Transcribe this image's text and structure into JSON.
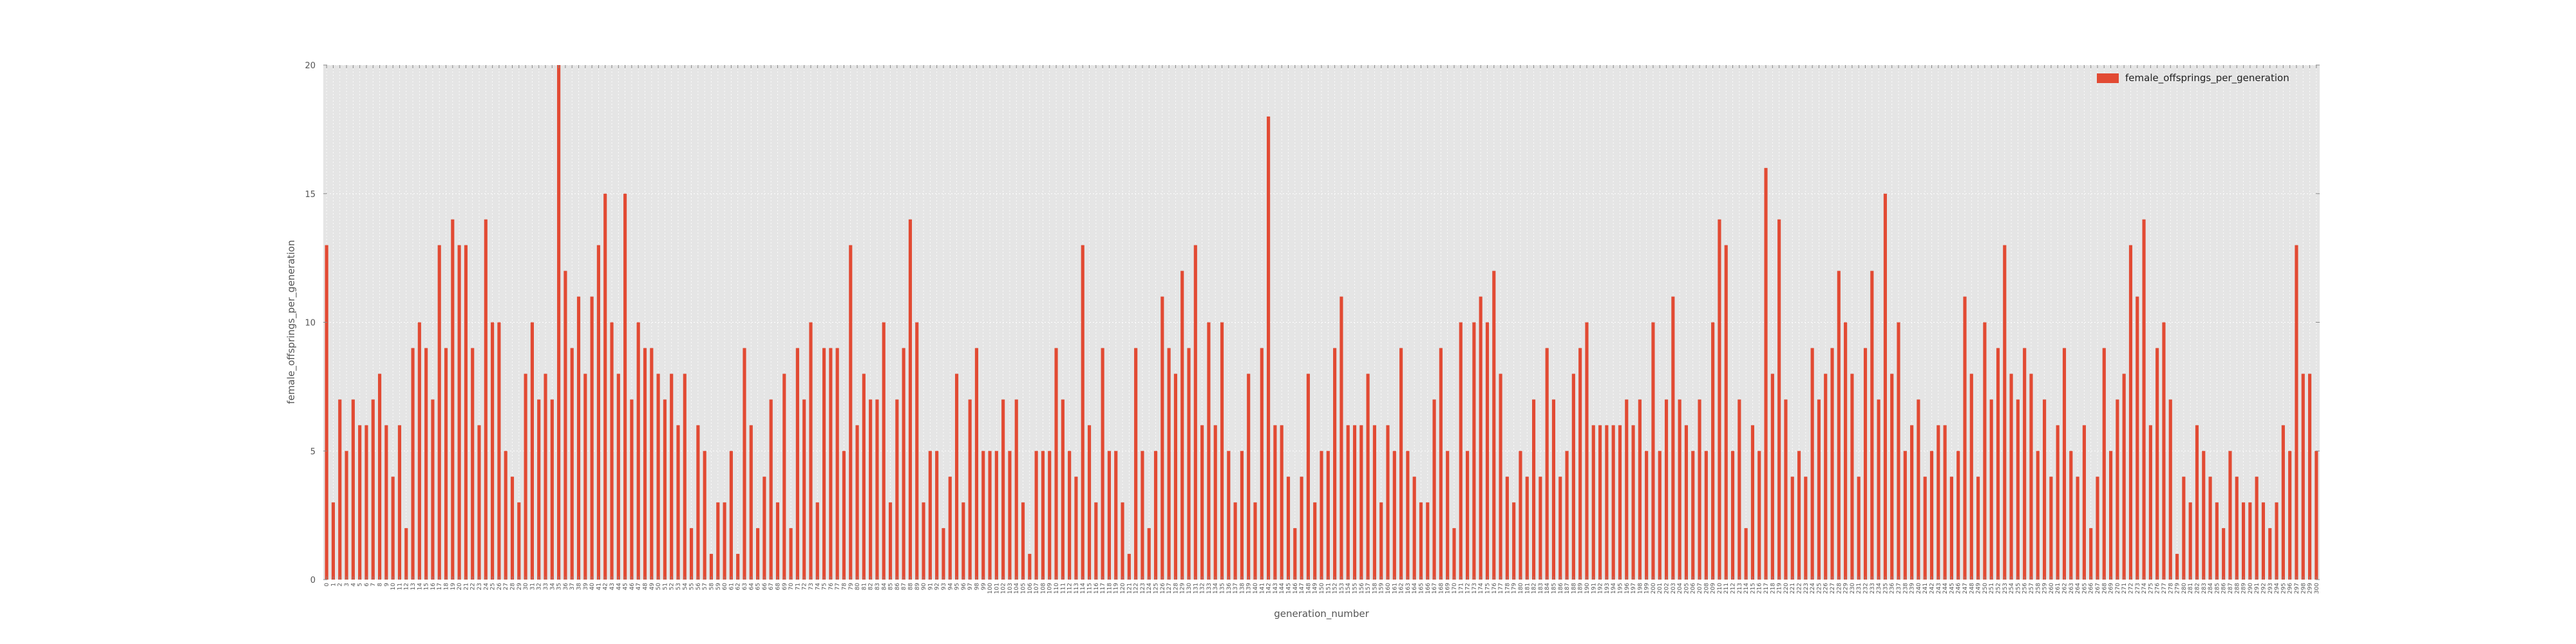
{
  "chart_data": {
    "type": "bar",
    "title": "",
    "xlabel": "generation_number",
    "ylabel": "female_offsprings_per_generation",
    "ylim": [
      0,
      20
    ],
    "yticks": [
      0,
      5,
      10,
      15,
      20
    ],
    "grid": true,
    "legend_position": "top-right",
    "series": [
      {
        "name": "female_offsprings_per_generation",
        "color": "#e24a33",
        "values": [
          13,
          3,
          7,
          5,
          7,
          6,
          6,
          7,
          8,
          6,
          4,
          6,
          2,
          9,
          10,
          9,
          7,
          13,
          9,
          14,
          13,
          13,
          9,
          6,
          14,
          10,
          10,
          5,
          4,
          3,
          8,
          10,
          7,
          8,
          7,
          20,
          12,
          9,
          11,
          8,
          11,
          13,
          15,
          10,
          8,
          15,
          7,
          10,
          9,
          9,
          8,
          7,
          8,
          6,
          8,
          2,
          6,
          5,
          1,
          3,
          3,
          5,
          1,
          9,
          6,
          2,
          4,
          7,
          3,
          8,
          2,
          9,
          7,
          10,
          3,
          9,
          9,
          9,
          5,
          13,
          6,
          8,
          7,
          7,
          10,
          3,
          7,
          9,
          14,
          10,
          3,
          5,
          5,
          2,
          4,
          8,
          3,
          7,
          9,
          5,
          5,
          5,
          7,
          5,
          7,
          3,
          1,
          5,
          5,
          5,
          9,
          7,
          5,
          4,
          13,
          6,
          3,
          9,
          5,
          5,
          3,
          1,
          9,
          5,
          2,
          5,
          11,
          9,
          8,
          12,
          9,
          13,
          6,
          10,
          6,
          10,
          5,
          3,
          5,
          8,
          3,
          9,
          18,
          6,
          6,
          4,
          2,
          4,
          8,
          3,
          5,
          5,
          9,
          11,
          6,
          6,
          6,
          8,
          6,
          3,
          6,
          5,
          9,
          5,
          4,
          3,
          3,
          7,
          9,
          5,
          2,
          10,
          5,
          10,
          11,
          10,
          12,
          8,
          4,
          3,
          5,
          4,
          7,
          4,
          9,
          7,
          4,
          5,
          8,
          9,
          10,
          6,
          6,
          6,
          6,
          6,
          7,
          6,
          7,
          5,
          10,
          5,
          7,
          11,
          7,
          6,
          5,
          7,
          5,
          10,
          14,
          13,
          5,
          7,
          2,
          6,
          5,
          16,
          8,
          14,
          7,
          4,
          5,
          4,
          9,
          7,
          8,
          9,
          12,
          10,
          8,
          4,
          9,
          12,
          7,
          15,
          8,
          10,
          5,
          6,
          7,
          4,
          5,
          6,
          6,
          4,
          5,
          11,
          8,
          4,
          10,
          7,
          9,
          13,
          8,
          7,
          9,
          8,
          5,
          7,
          4,
          6,
          9,
          5,
          4,
          6,
          2,
          4,
          9,
          5,
          7,
          8,
          13,
          11,
          14,
          6,
          9,
          10,
          7,
          1,
          4,
          3,
          6,
          5,
          4,
          3,
          2,
          5,
          4,
          3,
          3,
          4,
          3,
          2,
          3,
          6,
          5,
          13,
          8,
          8,
          5
        ]
      }
    ]
  }
}
